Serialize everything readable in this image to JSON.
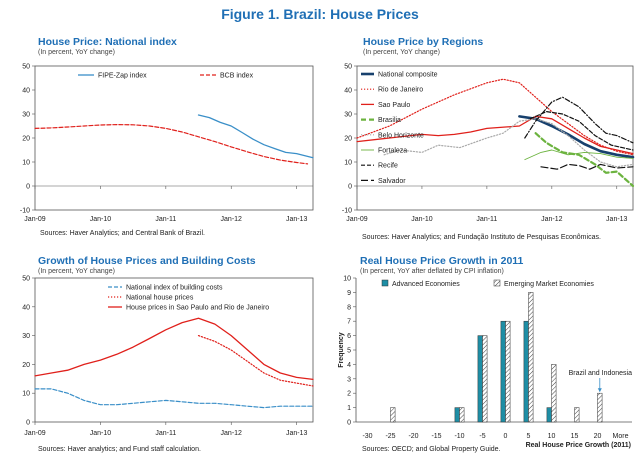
{
  "figure_title": "Figure 1. Brazil: House Prices",
  "panels": [
    {
      "title": "House Price: National index",
      "subtitle": "(In percent, YoY change)",
      "source": "Sources: Haver Analytics; and Central Bank of Brazil."
    },
    {
      "title": "House Price by Regions",
      "subtitle": "(In percent, YoY change)",
      "source": "Sources: Haver Analytics; and Fundação Instituto de Pesquisas Econômicas."
    },
    {
      "title": "Growth of House Prices and Building Costs",
      "subtitle": "(In percent, YoY change)",
      "source": "Sources: Haver analytics; and Fund staff calculation."
    },
    {
      "title": "Real House Price Growth in 2011",
      "subtitle": "(In percent, YoY after deflated by CPI inflation)",
      "source": "Sources: OECD; and Global Property Guide."
    }
  ],
  "colors": {
    "title_blue": "#1f6fb5",
    "blue": "#3a8fc8",
    "red": "#e0201b",
    "navy": "#17406d",
    "green": "#6cb33f",
    "black": "#111111",
    "gray": "#aaaaaa",
    "teal": "#1e8ea5"
  },
  "chart_data": [
    {
      "type": "line",
      "xlim": [
        "2009-01",
        "2013-04"
      ],
      "ylim": [
        -10,
        50
      ],
      "yticks": [
        -10,
        0,
        10,
        20,
        30,
        40,
        50
      ],
      "xticks": [
        "Jan-09",
        "Jan-10",
        "Jan-11",
        "Jan-12",
        "Jan-13"
      ],
      "legend_position": "top",
      "series": [
        {
          "name": "FIPE-Zap index",
          "color": "#3a8fc8",
          "dash": "solid",
          "points": [
            [
              "2011-07",
              29.6
            ],
            [
              "2011-09",
              28.5
            ],
            [
              "2011-11",
              26.5
            ],
            [
              "2012-01",
              25
            ],
            [
              "2012-03",
              22.3
            ],
            [
              "2012-05",
              19.5
            ],
            [
              "2012-07",
              17.2
            ],
            [
              "2012-09",
              15.6
            ],
            [
              "2012-11",
              14
            ],
            [
              "2013-01",
              13.5
            ],
            [
              "2013-04",
              11.8
            ]
          ]
        },
        {
          "name": "BCB index",
          "color": "#e0201b",
          "dash": "dash",
          "points": [
            [
              "2009-01",
              24
            ],
            [
              "2009-04",
              24.2
            ],
            [
              "2009-07",
              24.6
            ],
            [
              "2009-10",
              25
            ],
            [
              "2010-01",
              25.4
            ],
            [
              "2010-04",
              25.6
            ],
            [
              "2010-07",
              25.5
            ],
            [
              "2010-10",
              25
            ],
            [
              "2011-01",
              24
            ],
            [
              "2011-04",
              22.5
            ],
            [
              "2011-07",
              20.5
            ],
            [
              "2011-10",
              18.5
            ],
            [
              "2012-01",
              16.3
            ],
            [
              "2012-04",
              14.2
            ],
            [
              "2012-07",
              12.3
            ],
            [
              "2012-10",
              10.8
            ],
            [
              "2013-01",
              9.8
            ],
            [
              "2013-03",
              9.2
            ]
          ]
        }
      ]
    },
    {
      "type": "line",
      "xlim": [
        "2009-01",
        "2013-04"
      ],
      "ylim": [
        -10,
        50
      ],
      "yticks": [
        -10,
        0,
        10,
        20,
        30,
        40,
        50
      ],
      "xticks": [
        "Jan-09",
        "Jan-10",
        "Jan-11",
        "Jan-12",
        "Jan-13"
      ],
      "legend_position": "top-left",
      "series": [
        {
          "name": "National composite",
          "color": "#17406d",
          "dash": "solid-thick",
          "points": [
            [
              "2011-07",
              29
            ],
            [
              "2011-10",
              28
            ],
            [
              "2012-01",
              25
            ],
            [
              "2012-04",
              21.5
            ],
            [
              "2012-07",
              17.5
            ],
            [
              "2012-10",
              14.5
            ],
            [
              "2013-01",
              13
            ],
            [
              "2013-04",
              12
            ]
          ]
        },
        {
          "name": "Rio de Janeiro",
          "color": "#e0201b",
          "dash": "dot",
          "points": [
            [
              "2009-01",
              20
            ],
            [
              "2009-07",
              25
            ],
            [
              "2010-01",
              32
            ],
            [
              "2010-07",
              38
            ],
            [
              "2011-01",
              43
            ],
            [
              "2011-04",
              44.5
            ],
            [
              "2011-07",
              43
            ],
            [
              "2011-10",
              37
            ],
            [
              "2012-01",
              31
            ],
            [
              "2012-04",
              26
            ],
            [
              "2012-07",
              21
            ],
            [
              "2012-10",
              17
            ],
            [
              "2013-01",
              14.5
            ],
            [
              "2013-04",
              13
            ]
          ]
        },
        {
          "name": "Sao Paulo",
          "color": "#e0201b",
          "dash": "solid",
          "points": [
            [
              "2009-01",
              18.5
            ],
            [
              "2009-07",
              20
            ],
            [
              "2010-01",
              21.5
            ],
            [
              "2010-04",
              21
            ],
            [
              "2010-07",
              21.5
            ],
            [
              "2010-10",
              22.5
            ],
            [
              "2011-01",
              24
            ],
            [
              "2011-07",
              25
            ],
            [
              "2011-10",
              29
            ],
            [
              "2012-01",
              28
            ],
            [
              "2012-04",
              24
            ],
            [
              "2012-07",
              20
            ],
            [
              "2012-10",
              16.5
            ],
            [
              "2013-01",
              15
            ],
            [
              "2013-04",
              13.5
            ]
          ]
        },
        {
          "name": "Brasilia",
          "color": "#6cb33f",
          "dash": "dash-thick",
          "points": [
            [
              "2011-10",
              22
            ],
            [
              "2011-12",
              18
            ],
            [
              "2012-03",
              14
            ],
            [
              "2012-06",
              13
            ],
            [
              "2012-09",
              9
            ],
            [
              "2012-11",
              5.5
            ],
            [
              "2013-01",
              6
            ],
            [
              "2013-04",
              0
            ]
          ]
        },
        {
          "name": "Belo Horizonte",
          "color": "#aaaaaa",
          "dash": "dot",
          "points": [
            [
              "2009-06",
              13
            ],
            [
              "2009-09",
              15
            ],
            [
              "2010-01",
              14
            ],
            [
              "2010-04",
              17
            ],
            [
              "2010-08",
              16
            ],
            [
              "2011-01",
              20
            ],
            [
              "2011-04",
              22
            ],
            [
              "2011-07",
              27
            ],
            [
              "2011-10",
              28
            ],
            [
              "2012-01",
              26
            ],
            [
              "2012-04",
              21
            ],
            [
              "2012-07",
              15
            ],
            [
              "2012-10",
              10
            ],
            [
              "2013-01",
              8
            ],
            [
              "2013-04",
              9
            ]
          ]
        },
        {
          "name": "Fortaleza",
          "color": "#6cb33f",
          "dash": "solid-thin",
          "points": [
            [
              "2011-08",
              11
            ],
            [
              "2011-11",
              14
            ],
            [
              "2012-01",
              15
            ],
            [
              "2012-04",
              13
            ],
            [
              "2012-07",
              14
            ],
            [
              "2012-10",
              13.5
            ],
            [
              "2013-01",
              12
            ],
            [
              "2013-04",
              11.5
            ]
          ]
        },
        {
          "name": "Recife",
          "color": "#111111",
          "dash": "dash",
          "points": [
            [
              "2011-09",
              28
            ],
            [
              "2011-12",
              31
            ],
            [
              "2012-03",
              30
            ],
            [
              "2012-06",
              27
            ],
            [
              "2012-09",
              21
            ],
            [
              "2012-12",
              17
            ],
            [
              "2013-02",
              16
            ],
            [
              "2013-04",
              15
            ]
          ]
        },
        {
          "name": "Salvador",
          "color": "#111111",
          "dash": "dash-long",
          "points": [
            [
              "2011-11",
              8
            ],
            [
              "2012-02",
              7
            ],
            [
              "2012-04",
              9
            ],
            [
              "2012-06",
              8.5
            ],
            [
              "2012-08",
              7
            ],
            [
              "2012-10",
              9
            ],
            [
              "2013-01",
              7.5
            ],
            [
              "2013-04",
              8
            ]
          ]
        },
        {
          "name": "",
          "color": "#111111",
          "dash": "dash-dot",
          "points": [
            [
              "2011-08",
              20
            ],
            [
              "2011-10",
              27
            ],
            [
              "2012-01",
              35
            ],
            [
              "2012-03",
              37
            ],
            [
              "2012-06",
              33
            ],
            [
              "2012-09",
              26
            ],
            [
              "2012-11",
              22
            ],
            [
              "2013-01",
              21
            ],
            [
              "2013-04",
              18
            ]
          ]
        }
      ]
    },
    {
      "type": "line",
      "xlim": [
        "2009-01",
        "2013-04"
      ],
      "ylim": [
        0,
        50
      ],
      "yticks": [
        0,
        10,
        20,
        30,
        40,
        50
      ],
      "xticks": [
        "Jan-09",
        "Jan-10",
        "Jan-11",
        "Jan-12",
        "Jan-13"
      ],
      "legend_position": "top-right",
      "series": [
        {
          "name": "National index of building costs",
          "color": "#3a8fc8",
          "dash": "dash",
          "points": [
            [
              "2009-01",
              11.5
            ],
            [
              "2009-04",
              11.5
            ],
            [
              "2009-07",
              10
            ],
            [
              "2009-10",
              7.5
            ],
            [
              "2010-01",
              6
            ],
            [
              "2010-04",
              6
            ],
            [
              "2010-07",
              6.5
            ],
            [
              "2010-10",
              7
            ],
            [
              "2011-01",
              7.5
            ],
            [
              "2011-04",
              7
            ],
            [
              "2011-07",
              6.5
            ],
            [
              "2011-10",
              6.5
            ],
            [
              "2012-01",
              6
            ],
            [
              "2012-04",
              5.5
            ],
            [
              "2012-07",
              5
            ],
            [
              "2012-10",
              5.5
            ],
            [
              "2013-01",
              5.5
            ],
            [
              "2013-04",
              5.5
            ]
          ]
        },
        {
          "name": "National house prices",
          "color": "#e0201b",
          "dash": "dot",
          "points": [
            [
              "2011-07",
              30
            ],
            [
              "2011-10",
              28
            ],
            [
              "2012-01",
              25
            ],
            [
              "2012-04",
              21
            ],
            [
              "2012-07",
              17
            ],
            [
              "2012-10",
              14.5
            ],
            [
              "2013-01",
              13.5
            ],
            [
              "2013-04",
              12.5
            ]
          ]
        },
        {
          "name": "House prices in Sao Paulo and Rio de Janeiro",
          "color": "#e0201b",
          "dash": "solid",
          "points": [
            [
              "2009-01",
              16
            ],
            [
              "2009-04",
              17
            ],
            [
              "2009-07",
              18
            ],
            [
              "2009-10",
              20
            ],
            [
              "2010-01",
              21.5
            ],
            [
              "2010-04",
              23.5
            ],
            [
              "2010-07",
              26
            ],
            [
              "2010-10",
              29
            ],
            [
              "2011-01",
              32
            ],
            [
              "2011-04",
              34.5
            ],
            [
              "2011-07",
              36
            ],
            [
              "2011-10",
              34
            ],
            [
              "2012-01",
              30
            ],
            [
              "2012-04",
              25
            ],
            [
              "2012-07",
              20
            ],
            [
              "2012-10",
              17
            ],
            [
              "2013-01",
              15.5
            ],
            [
              "2013-04",
              14.8
            ]
          ]
        }
      ]
    },
    {
      "type": "bar",
      "ylabel": "Frequency",
      "xlabel": "Real House Price Growth (2011)",
      "ylim": [
        0,
        10
      ],
      "yticks": [
        0,
        1,
        2,
        3,
        4,
        5,
        6,
        7,
        8,
        9,
        10
      ],
      "categories": [
        "-30",
        "-25",
        "-20",
        "-15",
        "-10",
        "-5",
        "0",
        "5",
        "10",
        "15",
        "20",
        "More"
      ],
      "legend_position": "top",
      "series": [
        {
          "name": "Advanced Economies",
          "color": "#1e8ea5",
          "values": [
            0,
            0,
            0,
            0,
            1,
            6,
            7,
            7,
            1,
            0,
            0,
            0
          ]
        },
        {
          "name": "Emerging Market Economies",
          "color": "#ffffff",
          "pattern": "diagonal-hatch",
          "values": [
            0,
            1,
            0,
            0,
            1,
            6,
            7,
            9,
            4,
            1,
            2,
            0
          ]
        }
      ],
      "annotations": [
        {
          "text": "Brazil and Indonesia",
          "category": "20"
        }
      ]
    }
  ]
}
